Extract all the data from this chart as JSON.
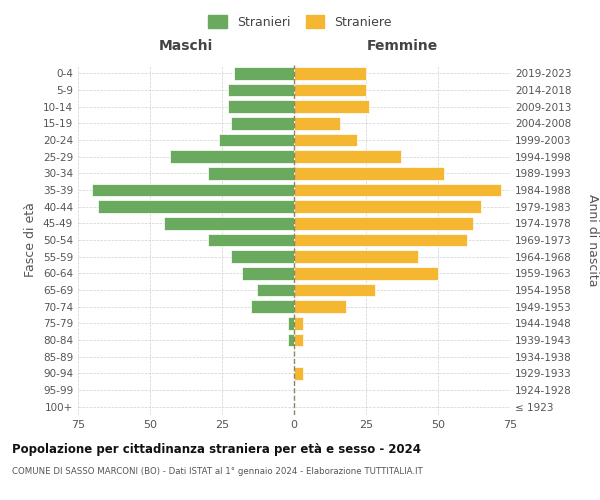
{
  "age_groups": [
    "100+",
    "95-99",
    "90-94",
    "85-89",
    "80-84",
    "75-79",
    "70-74",
    "65-69",
    "60-64",
    "55-59",
    "50-54",
    "45-49",
    "40-44",
    "35-39",
    "30-34",
    "25-29",
    "20-24",
    "15-19",
    "10-14",
    "5-9",
    "0-4"
  ],
  "birth_years": [
    "≤ 1923",
    "1924-1928",
    "1929-1933",
    "1934-1938",
    "1939-1943",
    "1944-1948",
    "1949-1953",
    "1954-1958",
    "1959-1963",
    "1964-1968",
    "1969-1973",
    "1974-1978",
    "1979-1983",
    "1984-1988",
    "1989-1993",
    "1994-1998",
    "1999-2003",
    "2004-2008",
    "2009-2013",
    "2014-2018",
    "2019-2023"
  ],
  "maschi": [
    0,
    0,
    0,
    0,
    2,
    2,
    15,
    13,
    18,
    22,
    30,
    45,
    68,
    70,
    30,
    43,
    26,
    22,
    23,
    23,
    21
  ],
  "femmine": [
    0,
    0,
    3,
    0,
    3,
    3,
    18,
    28,
    50,
    43,
    60,
    62,
    65,
    72,
    52,
    37,
    22,
    16,
    26,
    25,
    25
  ],
  "male_color": "#6aaa5e",
  "female_color": "#f5b731",
  "background_color": "#ffffff",
  "grid_color": "#cccccc",
  "title": "Popolazione per cittadinanza straniera per età e sesso - 2024",
  "subtitle": "COMUNE DI SASSO MARCONI (BO) - Dati ISTAT al 1° gennaio 2024 - Elaborazione TUTTITALIA.IT",
  "header_left": "Maschi",
  "header_right": "Femmine",
  "ylabel_left": "Fasce di età",
  "ylabel_right": "Anni di nascita",
  "legend_male": "Stranieri",
  "legend_female": "Straniere",
  "xlim": 75
}
